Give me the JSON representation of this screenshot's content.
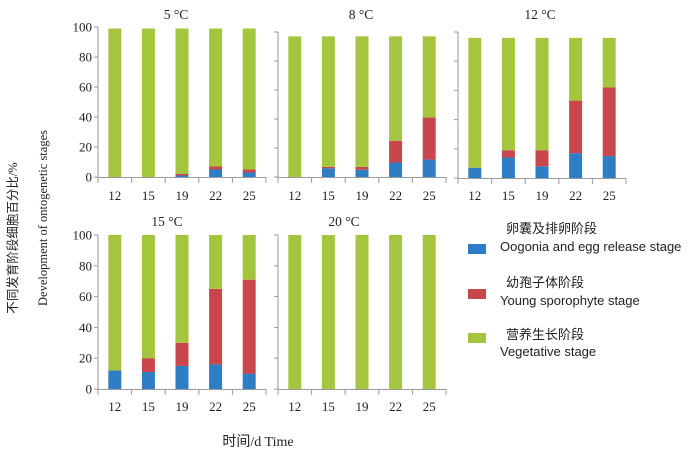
{
  "figure": {
    "ylabel_cn": "不同发育阶段细胞百分比/%",
    "ylabel_en": "Development of ontogenetic stages",
    "xlabel": "时间/d Time"
  },
  "chart_data": {
    "type": "bar",
    "stacked": true,
    "categories": [
      "12",
      "15",
      "19",
      "22",
      "25"
    ],
    "yticks": [
      "0",
      "20",
      "40",
      "60",
      "80",
      "100"
    ],
    "ylim": [
      0,
      100
    ],
    "legend_position": "right",
    "series_meta": [
      {
        "name_cn": "卵囊及排卵阶段",
        "name_en": "Oogonia and egg release stage",
        "color": "#2f7ec5"
      },
      {
        "name_cn": "幼孢子体阶段",
        "name_en": "Young sporophyte stage",
        "color": "#c9464d"
      },
      {
        "name_cn": "营养生长阶段",
        "name_en": "Vegetative stage",
        "color": "#a6c53e"
      }
    ],
    "panels": [
      {
        "title": "5 °C",
        "oogonia": [
          0,
          0,
          1,
          5,
          3
        ],
        "young_sporophyte": [
          0,
          0,
          1,
          2,
          2
        ],
        "vegetative": [
          99,
          99,
          97,
          92,
          94
        ]
      },
      {
        "title": "8 °C",
        "oogonia": [
          0,
          6,
          5,
          10,
          12
        ],
        "young_sporophyte": [
          0,
          1,
          2,
          15,
          29
        ],
        "vegetative": [
          97,
          90,
          90,
          72,
          56
        ]
      },
      {
        "title": "12 °C",
        "oogonia": [
          7,
          14,
          8,
          17,
          15
        ],
        "young_sporophyte": [
          0,
          5,
          11,
          36,
          47
        ],
        "vegetative": [
          89,
          77,
          77,
          43,
          34
        ]
      },
      {
        "title": "15 °C",
        "oogonia": [
          12,
          11,
          15,
          16,
          10
        ],
        "young_sporophyte": [
          0,
          9,
          15,
          49,
          61
        ],
        "vegetative": [
          88,
          80,
          70,
          35,
          29
        ]
      },
      {
        "title": "20 °C",
        "oogonia": [
          0,
          0,
          0,
          0,
          0
        ],
        "young_sporophyte": [
          0,
          0,
          0,
          0,
          0
        ],
        "vegetative": [
          100,
          100,
          100,
          100,
          100
        ]
      }
    ]
  }
}
